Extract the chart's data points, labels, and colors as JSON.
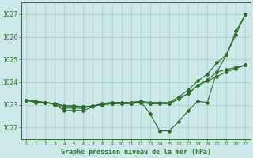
{
  "x": [
    0,
    1,
    2,
    3,
    4,
    5,
    6,
    7,
    8,
    9,
    10,
    11,
    12,
    13,
    14,
    15,
    16,
    17,
    18,
    19,
    20,
    21,
    22,
    23
  ],
  "line1": [
    1023.2,
    1023.1,
    1023.1,
    1023.0,
    1022.75,
    1022.75,
    1022.75,
    1022.9,
    1023.05,
    1023.1,
    1023.1,
    1023.1,
    1023.15,
    1022.6,
    1021.85,
    1021.85,
    1022.25,
    1022.75,
    1023.15,
    1023.1,
    1024.45,
    1025.2,
    1026.25,
    1027.0
  ],
  "line2": [
    1023.2,
    1023.1,
    1023.1,
    1023.05,
    1022.85,
    1022.85,
    1022.85,
    1022.95,
    1023.05,
    1023.1,
    1023.1,
    1023.1,
    1023.15,
    1023.1,
    1023.1,
    1023.1,
    1023.35,
    1023.65,
    1024.05,
    1024.35,
    1024.85,
    1025.2,
    1026.1,
    1027.0
  ],
  "line3": [
    1023.2,
    1023.15,
    1023.1,
    1023.05,
    1022.95,
    1022.95,
    1022.9,
    1022.95,
    1023.0,
    1023.05,
    1023.05,
    1023.05,
    1023.1,
    1023.05,
    1023.05,
    1023.05,
    1023.25,
    1023.5,
    1023.85,
    1024.1,
    1024.45,
    1024.55,
    1024.65,
    1024.75
  ],
  "line4": [
    1023.2,
    1023.15,
    1023.1,
    1023.05,
    1022.95,
    1022.95,
    1022.9,
    1022.95,
    1023.0,
    1023.05,
    1023.05,
    1023.05,
    1023.1,
    1023.05,
    1023.05,
    1023.05,
    1023.25,
    1023.5,
    1023.85,
    1024.05,
    1024.25,
    1024.45,
    1024.6,
    1024.75
  ],
  "line_color": "#2d6a2d",
  "bg_color": "#cce8e8",
  "grid_color": "#aacccc",
  "xlabel": "Graphe pression niveau de la mer (hPa)",
  "xlim": [
    -0.5,
    23.5
  ],
  "ylim": [
    1021.5,
    1027.5
  ],
  "yticks": [
    1022,
    1023,
    1024,
    1025,
    1026,
    1027
  ],
  "xticks": [
    0,
    1,
    2,
    3,
    4,
    5,
    6,
    7,
    8,
    9,
    10,
    11,
    12,
    13,
    14,
    15,
    16,
    17,
    18,
    19,
    20,
    21,
    22,
    23
  ]
}
